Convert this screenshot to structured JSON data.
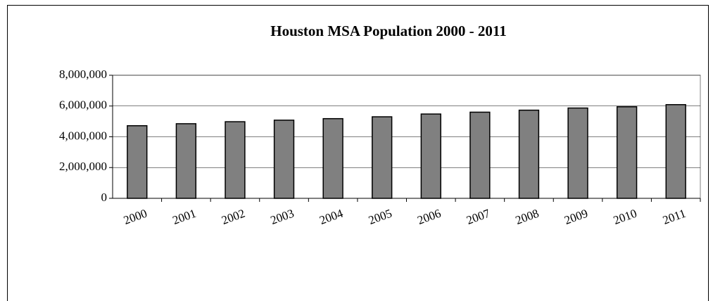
{
  "chart_data": {
    "type": "bar",
    "title": "Houston MSA Population 2000 - 2011",
    "categories": [
      "2000",
      "2001",
      "2002",
      "2003",
      "2004",
      "2005",
      "2006",
      "2007",
      "2008",
      "2009",
      "2010",
      "2011"
    ],
    "values": [
      4720000,
      4850000,
      4980000,
      5080000,
      5180000,
      5300000,
      5480000,
      5600000,
      5730000,
      5870000,
      5950000,
      6090000
    ],
    "color": "#808080",
    "ylim": [
      0,
      8000000
    ],
    "yticks": [
      0,
      {
        "value": 2000000,
        "label": "2,000,000"
      },
      {
        "value": 4000000,
        "label": "4,000,000"
      },
      {
        "value": 6000000,
        "label": "6,000,000"
      },
      {
        "value": 8000000,
        "label": "8,000,000"
      }
    ],
    "grid": true
  }
}
